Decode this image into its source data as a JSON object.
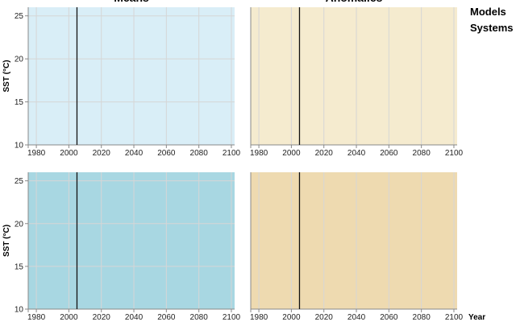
{
  "legend": [
    "Models",
    "Systems"
  ],
  "chart_data": [
    {
      "type": "line",
      "title": "Means",
      "xlabel": "",
      "ylabel": "SST (°C)",
      "xlim": [
        1975,
        2102
      ],
      "ylim": [
        10,
        26
      ],
      "xticks": [
        1980,
        2000,
        2020,
        2040,
        2060,
        2080,
        2100
      ],
      "yticks": [
        10,
        15,
        20,
        25
      ],
      "background": "#d9eef7",
      "vline": 2005,
      "grid": true,
      "series": []
    },
    {
      "type": "line",
      "title": "Anomalies",
      "xlabel": "",
      "ylabel": "",
      "xlim": [
        1975,
        2102
      ],
      "ylim": [
        10,
        26
      ],
      "xticks": [
        1980,
        2000,
        2020,
        2040,
        2060,
        2080,
        2100
      ],
      "yticks": [],
      "background": "#f5ebcf",
      "vline": 2005,
      "grid": true,
      "series": []
    },
    {
      "type": "line",
      "title": "",
      "xlabel": "",
      "ylabel": "SST (°C)",
      "xlim": [
        1975,
        2102
      ],
      "ylim": [
        10,
        26
      ],
      "xticks": [
        1980,
        2000,
        2020,
        2040,
        2060,
        2080,
        2100
      ],
      "yticks": [
        10,
        15,
        20,
        25
      ],
      "background": "#a8d7e2",
      "vline": 2005,
      "grid": true,
      "series": []
    },
    {
      "type": "line",
      "title": "",
      "xlabel": "Year",
      "ylabel": "",
      "xlim": [
        1975,
        2102
      ],
      "ylim": [
        10,
        26
      ],
      "xticks": [
        1980,
        2000,
        2020,
        2040,
        2060,
        2080,
        2100
      ],
      "yticks": [],
      "background": "#eedab0",
      "vline": 2005,
      "grid": true,
      "series": []
    }
  ]
}
